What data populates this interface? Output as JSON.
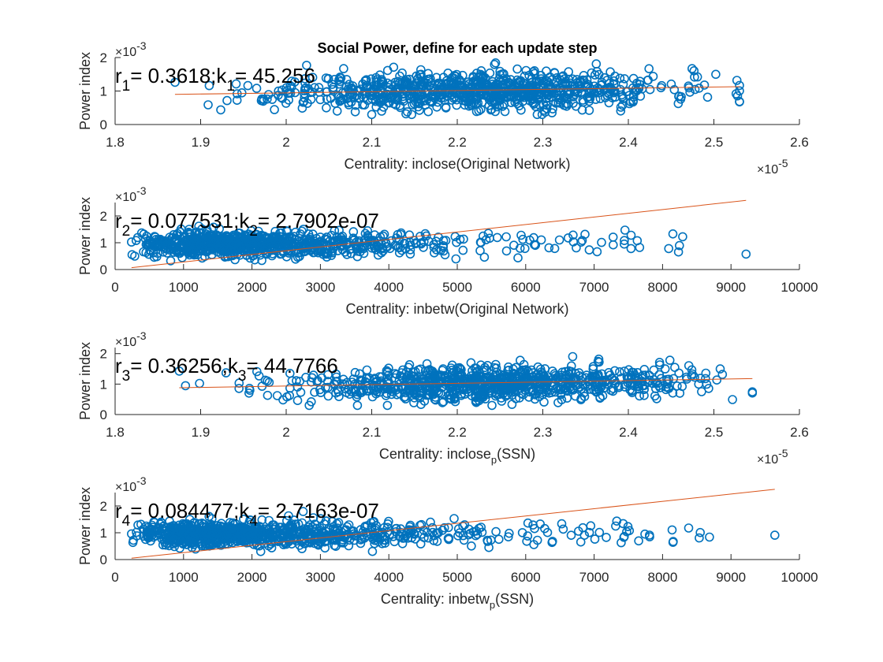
{
  "chart_data": [
    {
      "type": "scatter",
      "title": "Social Power, define for each update step",
      "xlabel": "Centrality: inclose(Original Network)",
      "ylabel": "Power index",
      "xlim": [
        1.8,
        2.6
      ],
      "ylim": [
        0,
        2
      ],
      "xticks": [
        1.8,
        1.9,
        2,
        2.1,
        2.2,
        2.3,
        2.4,
        2.5,
        2.6
      ],
      "yticks": [
        0,
        1,
        2
      ],
      "x_exponent": "×10^-5",
      "y_exponent": "×10^-3",
      "annotation": {
        "r_label": "r",
        "r_sub": "1",
        "r_value": "= 0.3618;",
        "k_label": "k",
        "k_sub": "1",
        "k_value": "= 45.256"
      },
      "x_sub": "",
      "x_suffix": "",
      "fit_line": [
        [
          1.87,
          0.9
        ],
        [
          2.53,
          1.13
        ]
      ],
      "scatter_params": {
        "n": 900,
        "xmin": 1.87,
        "xmax": 2.53,
        "xmode": "normal",
        "xmean": 2.22,
        "xsd": 0.11,
        "ybase": 0.9,
        "yslope": 0.35,
        "ysd": 0.28,
        "seed": 11
      },
      "grid": false,
      "legend": "none"
    },
    {
      "type": "scatter",
      "title": "",
      "xlabel": "Centrality: inbetw(Original Network)",
      "ylabel": "Power index",
      "xlim": [
        0,
        10000
      ],
      "ylim": [
        0,
        2.5
      ],
      "xticks": [
        0,
        1000,
        2000,
        3000,
        4000,
        5000,
        6000,
        7000,
        8000,
        9000,
        10000
      ],
      "yticks": [
        0,
        1,
        2
      ],
      "x_exponent": "",
      "y_exponent": "×10^-3",
      "annotation": {
        "r_label": "r",
        "r_sub": "2",
        "r_value": "= 0.077531;",
        "k_label": "k",
        "k_sub": "2",
        "k_value": "= 2.7902e-07"
      },
      "x_sub": "",
      "x_suffix": "",
      "fit_line": [
        [
          240,
          0.07
        ],
        [
          9220,
          2.58
        ]
      ],
      "scatter_params": {
        "n": 900,
        "xmin": 240,
        "xmax": 9220,
        "xmode": "skew",
        "xmean": 2600,
        "xsd": 1300,
        "ybase": 0.95,
        "yslope": 2e-05,
        "ysd": 0.22,
        "seed": 23
      },
      "grid": false,
      "legend": "none"
    },
    {
      "type": "scatter",
      "title": "",
      "xlabel": "Centrality: inclose",
      "ylabel": "Power index",
      "xlim": [
        1.8,
        2.6
      ],
      "ylim": [
        0,
        2.2
      ],
      "xticks": [
        1.8,
        1.9,
        2,
        2.1,
        2.2,
        2.3,
        2.4,
        2.5,
        2.6
      ],
      "yticks": [
        0,
        1,
        2
      ],
      "x_exponent": "×10^-5",
      "y_exponent": "×10^-3",
      "annotation": {
        "r_label": "r",
        "r_sub": "3",
        "r_value": "= 0.36256;",
        "k_label": "k",
        "k_sub": "3",
        "k_value": "= 44.7766"
      },
      "x_sub": "p",
      "x_suffix": "(SSN)",
      "fit_line": [
        [
          1.875,
          0.88
        ],
        [
          2.545,
          1.18
        ]
      ],
      "scatter_params": {
        "n": 900,
        "xmin": 1.875,
        "xmax": 2.545,
        "xmode": "normal",
        "xmean": 2.24,
        "xsd": 0.11,
        "ybase": 0.9,
        "yslope": 0.35,
        "ysd": 0.28,
        "seed": 37
      },
      "grid": false,
      "legend": "none"
    },
    {
      "type": "scatter",
      "title": "",
      "xlabel": "Centrality: inbetw",
      "ylabel": "Power index",
      "xlim": [
        0,
        10000
      ],
      "ylim": [
        0,
        2.5
      ],
      "xticks": [
        0,
        1000,
        2000,
        3000,
        4000,
        5000,
        6000,
        7000,
        8000,
        9000,
        10000
      ],
      "yticks": [
        0,
        1,
        2
      ],
      "x_exponent": "",
      "y_exponent": "×10^-3",
      "annotation": {
        "r_label": "r",
        "r_sub": "4",
        "r_value": "= 0.084477;",
        "k_label": "k",
        "k_sub": "4",
        "k_value": "= 2.7163e-07"
      },
      "x_sub": "p",
      "x_suffix": "(SSN)",
      "fit_line": [
        [
          240,
          0.05
        ],
        [
          9640,
          2.62
        ]
      ],
      "scatter_params": {
        "n": 900,
        "xmin": 240,
        "xmax": 9640,
        "xmode": "skew",
        "xmean": 2700,
        "xsd": 1400,
        "ybase": 0.95,
        "yslope": 2e-05,
        "ysd": 0.22,
        "seed": 51
      },
      "grid": false,
      "legend": "none"
    }
  ],
  "colors": {
    "marker": "#0072BD",
    "fit_line": "#D95319",
    "axis": "#262626"
  }
}
